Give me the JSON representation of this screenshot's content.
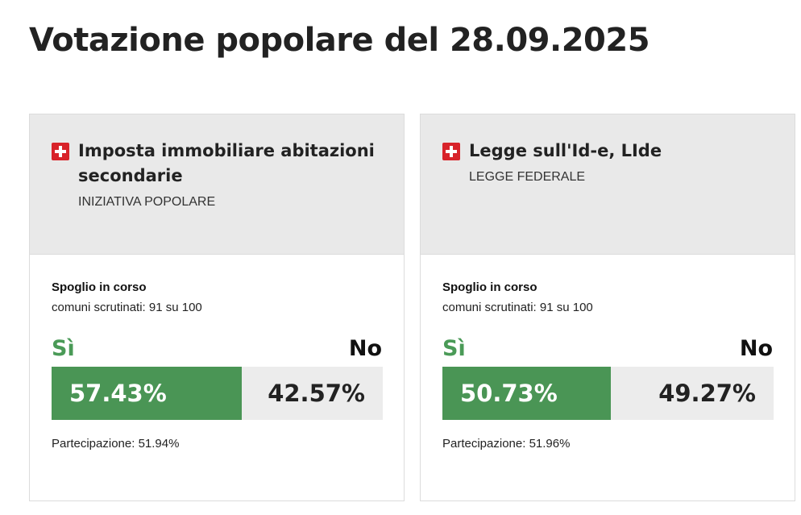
{
  "page": {
    "title": "Votazione popolare del 28.09.2025"
  },
  "colors": {
    "yes": "#4a9555",
    "flag": "#d8232a",
    "header_bg": "#e9e9e9"
  },
  "votes": [
    {
      "flag_icon": "swiss-flag-icon",
      "title": "Imposta immobiliare abitazioni secondarie",
      "type": "INIZIATIVA POPOLARE",
      "status": "Spoglio in corso",
      "counted": "comuni scrutinati: 91 su 100",
      "yes_label": "Sì",
      "no_label": "No",
      "yes_percent": 57.43,
      "no_percent": 42.57,
      "yes_text": "57.43%",
      "no_text": "42.57%",
      "turnout": "Partecipazione: 51.94%"
    },
    {
      "flag_icon": "swiss-flag-icon",
      "title": "Legge sull'Id-e, LIde",
      "type": "LEGGE FEDERALE",
      "status": "Spoglio in corso",
      "counted": "comuni scrutinati: 91 su 100",
      "yes_label": "Sì",
      "no_label": "No",
      "yes_percent": 50.73,
      "no_percent": 49.27,
      "yes_text": "50.73%",
      "no_text": "49.27%",
      "turnout": "Partecipazione: 51.96%"
    }
  ]
}
